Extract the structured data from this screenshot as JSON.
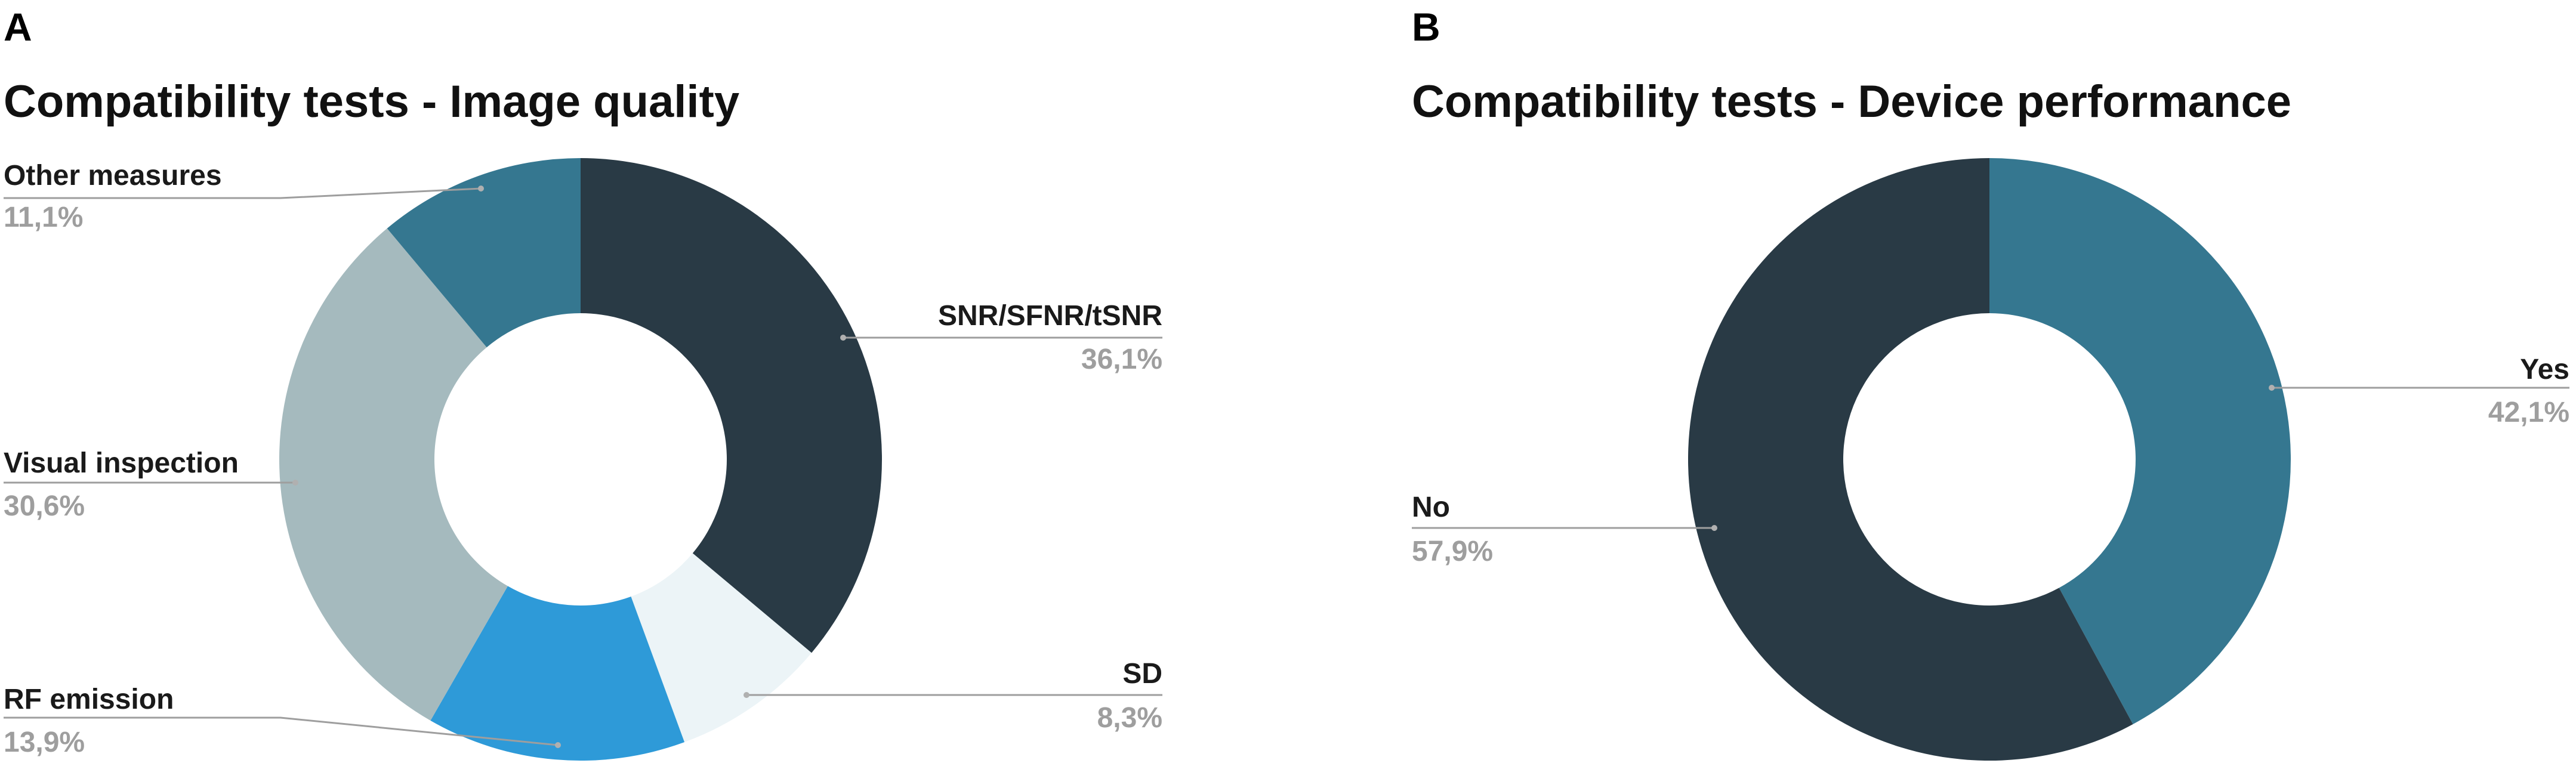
{
  "panels": [
    {
      "letter": "A"
    },
    {
      "letter": "B"
    }
  ],
  "chart_data": [
    {
      "type": "pie",
      "title": "Compatibility tests - Image quality",
      "donut": true,
      "categories": [
        "SNR/SFNR/tSNR",
        "SD",
        "RF emission",
        "Visual inspection",
        "Other measures"
      ],
      "values": [
        36.1,
        8.3,
        13.9,
        30.6,
        11.1
      ],
      "value_labels": [
        "36,1%",
        "8,3%",
        "13,9%",
        "30,6%",
        "11,1%"
      ],
      "colors": [
        "#293a45",
        "#ecf4f7",
        "#2e9ad8",
        "#a5babe",
        "#357790"
      ],
      "legend": "none"
    },
    {
      "type": "pie",
      "title": "Compatibility tests - Device performance",
      "donut": true,
      "categories": [
        "Yes",
        "No"
      ],
      "values": [
        42.1,
        57.9
      ],
      "value_labels": [
        "42,1%",
        "57,9%"
      ],
      "colors": [
        "#357790",
        "#293a45"
      ],
      "legend": "none"
    }
  ]
}
